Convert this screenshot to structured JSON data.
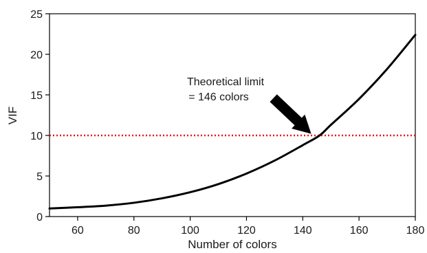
{
  "chart_data": {
    "type": "line",
    "title": "",
    "xlabel": "Number of colors",
    "ylabel": "VIF",
    "xlim": [
      50,
      180
    ],
    "ylim": [
      0,
      25
    ],
    "x_ticks": [
      60,
      80,
      100,
      120,
      140,
      160,
      180
    ],
    "y_ticks": [
      0,
      5,
      10,
      15,
      20,
      25
    ],
    "grid": false,
    "series": [
      {
        "name": "",
        "color": "#000000",
        "x": [
          50,
          60,
          70,
          80,
          90,
          100,
          110,
          120,
          130,
          140,
          146,
          150,
          160,
          170,
          180
        ],
        "y": [
          1.0,
          1.15,
          1.35,
          1.7,
          2.25,
          3.0,
          4.0,
          5.3,
          6.9,
          8.8,
          10.0,
          11.3,
          14.5,
          18.2,
          22.4
        ]
      }
    ],
    "reference_line": {
      "y": 10,
      "color": "#e8141c",
      "style": "dotted"
    },
    "annotation": {
      "line1": "Theoretical limit",
      "line2": "= 146 colors",
      "arrow_target": {
        "x": 143,
        "y": 10.2
      },
      "arrow_color": "#000000"
    }
  }
}
